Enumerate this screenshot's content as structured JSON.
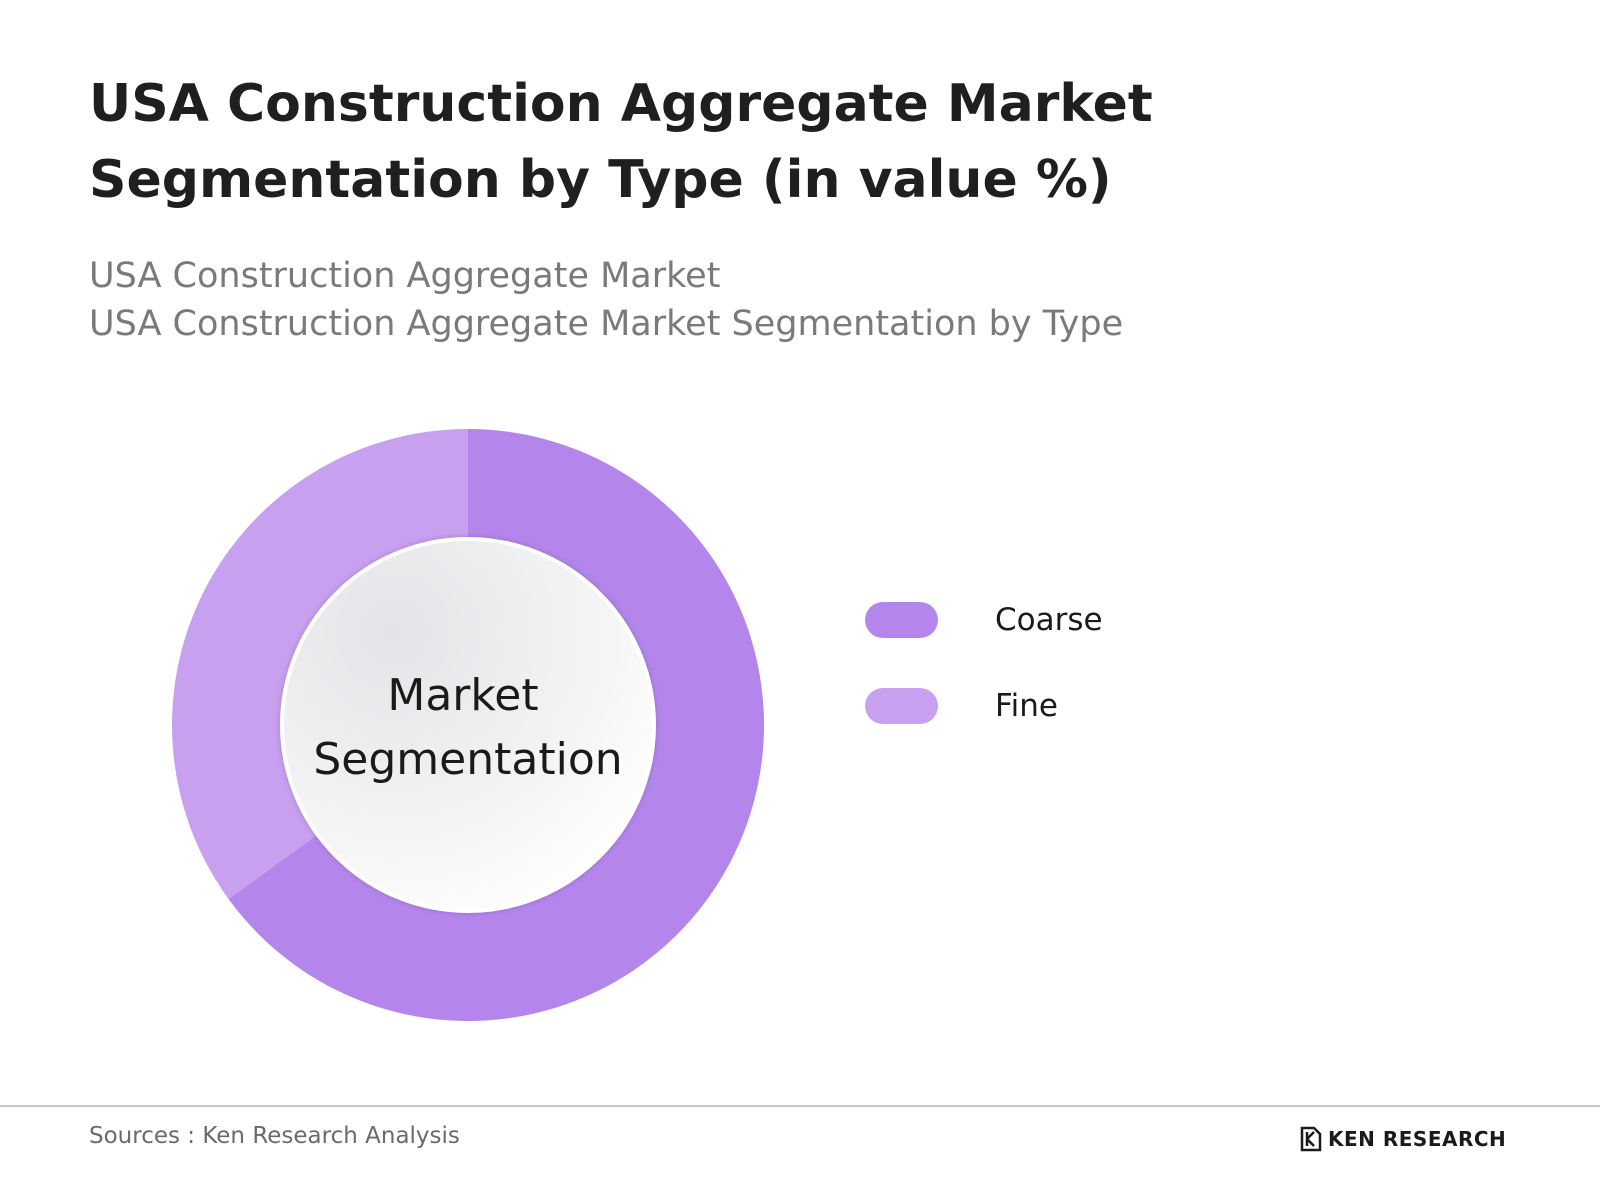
{
  "header": {
    "title": "USA Construction Aggregate Market Segmentation by Type (in value %)",
    "subtitle_line1": "USA Construction Aggregate Market",
    "subtitle_line2": "USA Construction Aggregate Market Segmentation by Type"
  },
  "chart_data": {
    "type": "pie",
    "center_label_line1": "Market",
    "center_label_line2": "Segmentation",
    "slices": [
      {
        "name": "Coarse",
        "value": 65,
        "color": "#b486ec"
      },
      {
        "name": "Fine",
        "value": 35,
        "color": "#c7a0f0"
      }
    ],
    "legend_position": "right"
  },
  "footer": {
    "source": "Sources : Ken Research Analysis",
    "logo_text": "KEN RESEARCH",
    "logo_icon": "ken-research-logo-icon"
  }
}
